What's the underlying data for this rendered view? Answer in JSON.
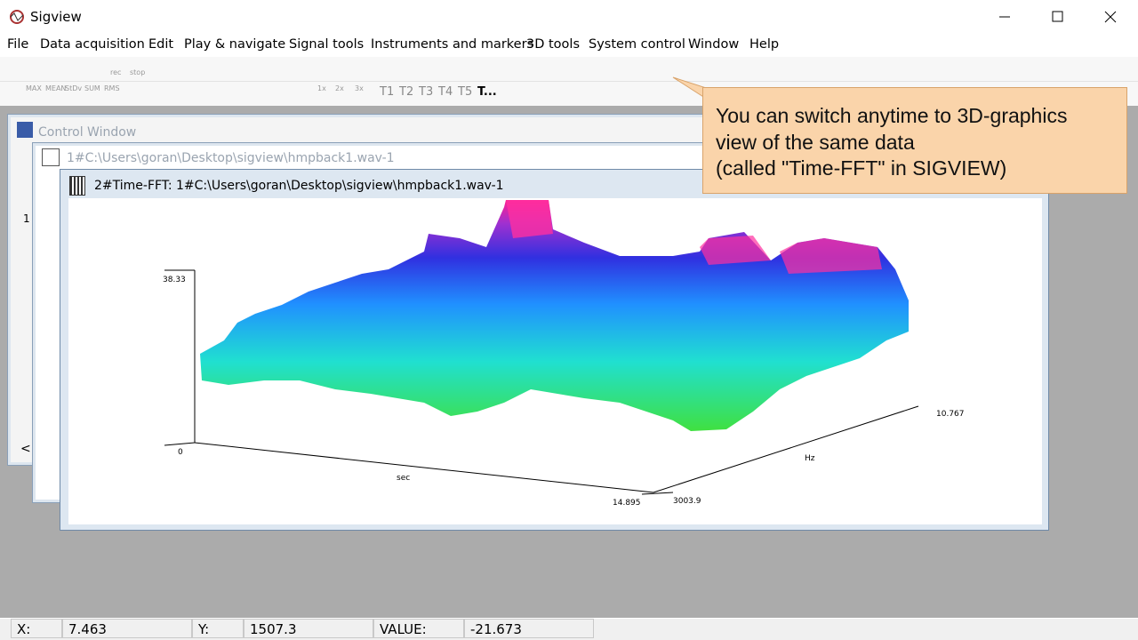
{
  "window": {
    "title": "Sigview"
  },
  "menu": [
    "File",
    "Data acquisition",
    "Edit",
    "Play & navigate",
    "Signal tools",
    "Instruments and markers",
    "3D tools",
    "System control",
    "Window",
    "Help"
  ],
  "toolbar": {
    "icon_labels": [
      "rec",
      "stop",
      "MAX",
      "MEAN",
      "StDv",
      "SUM",
      "RMS",
      "1x",
      "2x",
      "3x"
    ],
    "traces": [
      "T1",
      "T2",
      "T3",
      "T4",
      "T5",
      "T..."
    ]
  },
  "control_window": {
    "title": "Control Window",
    "scroll": "<"
  },
  "signal_window": {
    "title": "1#C:\\Users\\goran\\Desktop\\sigview\\hmpback1.wav-1",
    "channel": "1"
  },
  "fft_window": {
    "title": "2#Time-FFT:  1#C:\\Users\\goran\\Desktop\\sigview\\hmpback1.wav-1"
  },
  "plot": {
    "z_max": "38.33",
    "z_min": "0",
    "x_label": "sec",
    "x_max": "14.895",
    "y_min": "3003.9",
    "y_label": "Hz",
    "y_max": "10.767"
  },
  "callout": {
    "lines": [
      "You can switch anytime to 3D-graphics",
      "view of the same data",
      "(called \"Time-FFT\" in SIGVIEW)"
    ]
  },
  "status": {
    "x_label": "X:",
    "x_value": "7.463",
    "y_label": "Y:",
    "y_value": "1507.3",
    "value_label": "VALUE:",
    "value": "-21.673"
  }
}
